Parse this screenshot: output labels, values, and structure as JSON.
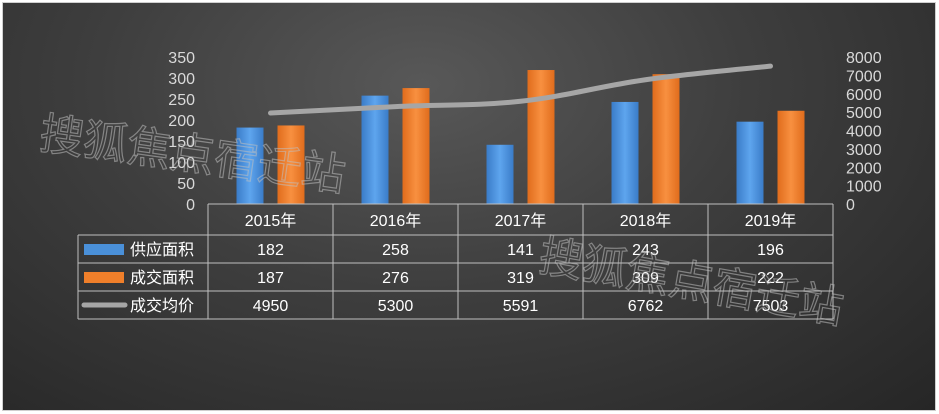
{
  "chart_data": {
    "type": "bar",
    "categories": [
      "2015年",
      "2016年",
      "2017年",
      "2018年",
      "2019年"
    ],
    "series": [
      {
        "name": "供应面积",
        "type": "bar",
        "axis": "left",
        "values": [
          182,
          258,
          141,
          243,
          196
        ]
      },
      {
        "name": "成交面积",
        "type": "bar",
        "axis": "left",
        "values": [
          187,
          276,
          319,
          309,
          222
        ]
      },
      {
        "name": "成交均价",
        "type": "line",
        "axis": "right",
        "values": [
          4950,
          5300,
          5591,
          6762,
          7503
        ]
      }
    ],
    "y_left": {
      "min": 0,
      "max": 350,
      "step": 50
    },
    "y_right": {
      "min": 0,
      "max": 8000,
      "step": 1000
    },
    "legend": "data-table",
    "grid": false
  },
  "watermarks": [
    "搜狐焦点宿迁站",
    "搜狐焦点宿迁站"
  ],
  "colors": {
    "supply": "#4a90d9",
    "deal": "#f07f2a",
    "price": "#a6a6a6",
    "axis": "#bfbfbf",
    "text": "#ffffff",
    "tick": "#d9d9d9"
  }
}
